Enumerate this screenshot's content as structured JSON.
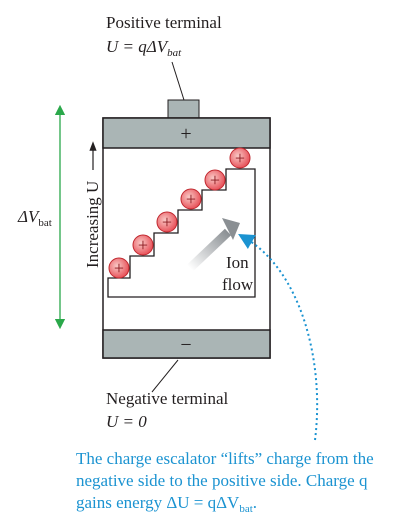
{
  "positive_terminal": {
    "label": "Positive terminal",
    "formula": "U = qΔV",
    "subscript": "bat"
  },
  "terminal_signs": {
    "positive": "+",
    "negative": "−"
  },
  "voltage_label": {
    "symbol": "ΔV",
    "subscript": "bat"
  },
  "potential_axis": "Increasing U",
  "ion_flow": [
    "Ion",
    "flow"
  ],
  "charges": [
    "+",
    "+",
    "+",
    "+",
    "+",
    "+"
  ],
  "negative_terminal": {
    "label": "Negative terminal",
    "formula": "U = 0"
  },
  "caption": {
    "lines": [
      "The charge escalator “lifts” charge from the",
      "negative side to the positive side. Charge q"
    ],
    "last_line": "gains energy ΔU = qΔV",
    "last_subscript": "bat",
    "last_end": "."
  }
}
